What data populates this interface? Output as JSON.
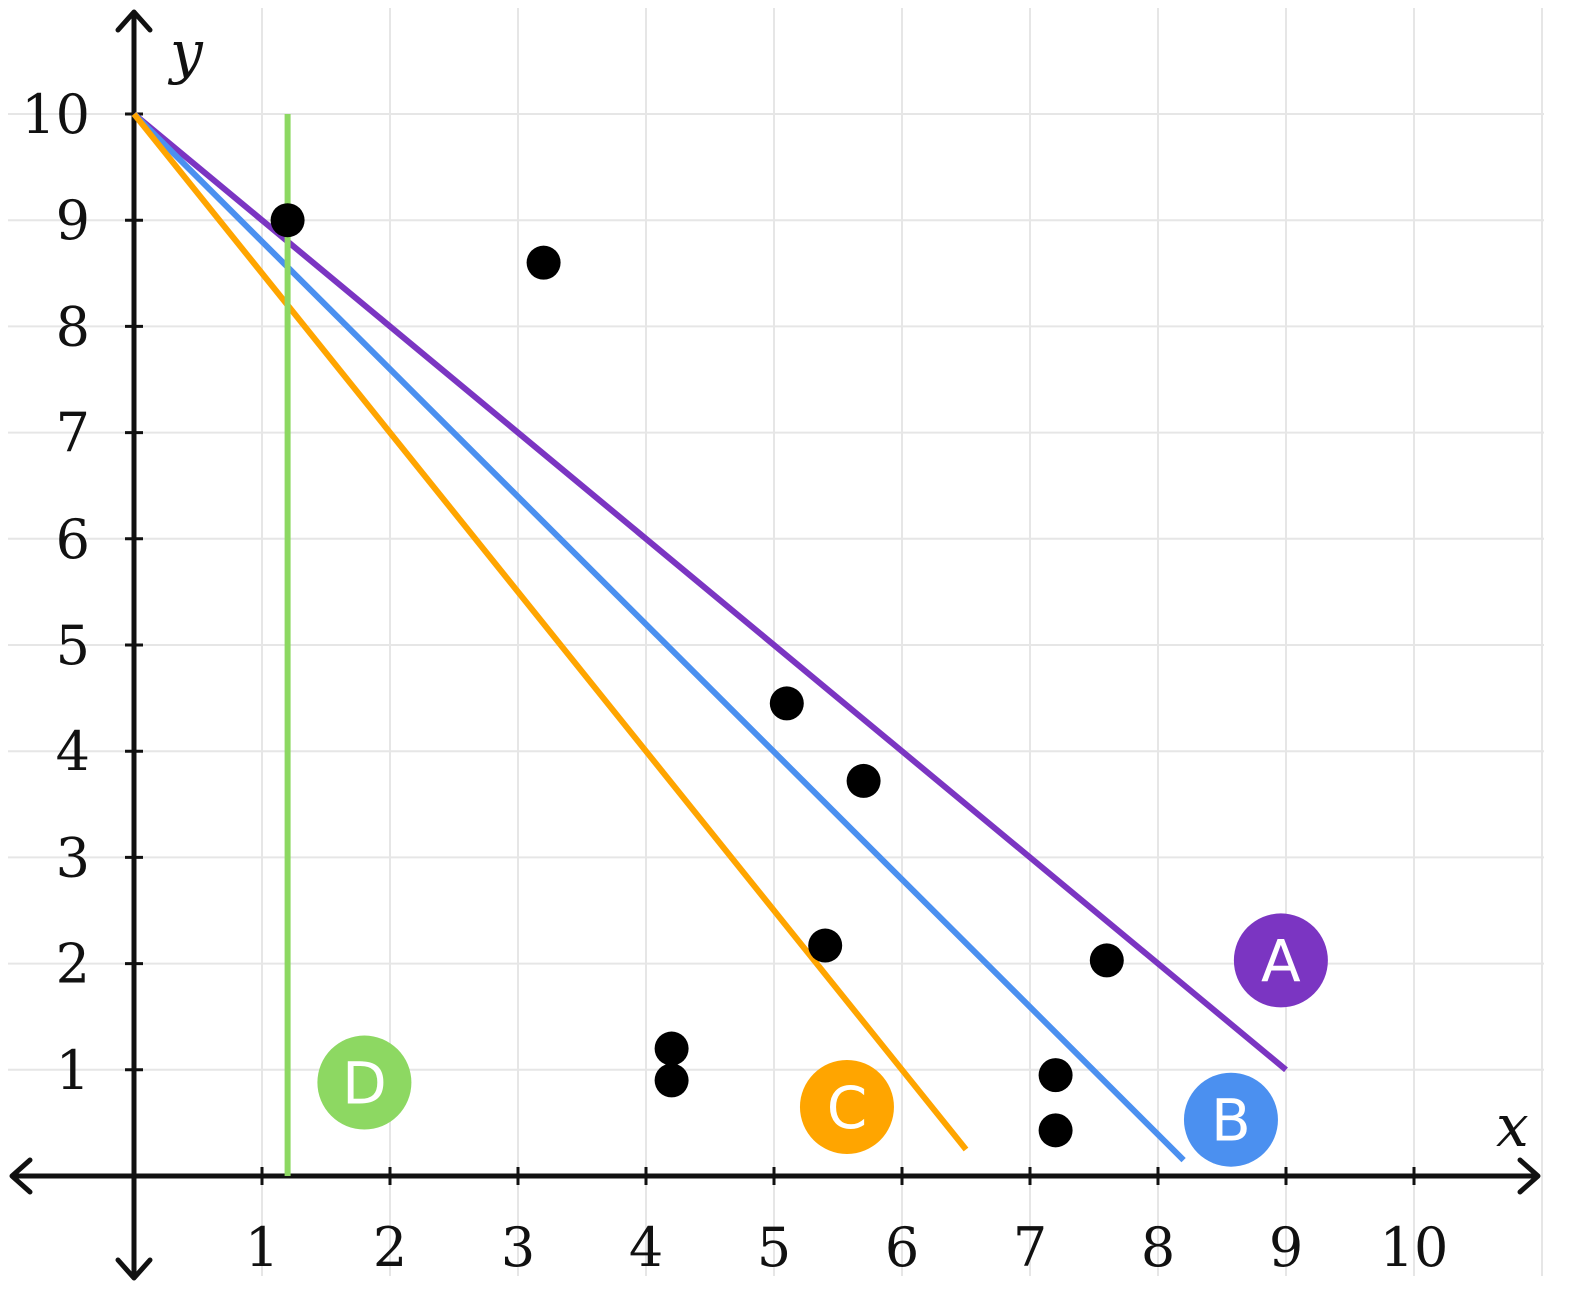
{
  "chart_data": {
    "type": "scatter",
    "title": "",
    "xlabel": "x",
    "ylabel": "y",
    "xlim": [
      -1,
      11
    ],
    "ylim": [
      -1,
      11
    ],
    "grid": true,
    "x_ticks": [
      "1",
      "2",
      "3",
      "4",
      "5",
      "6",
      "7",
      "8",
      "9",
      "10"
    ],
    "y_ticks": [
      "1",
      "2",
      "3",
      "4",
      "5",
      "6",
      "7",
      "8",
      "9",
      "10"
    ],
    "points": [
      {
        "x": 1.2,
        "y": 9.0
      },
      {
        "x": 3.2,
        "y": 8.6
      },
      {
        "x": 5.1,
        "y": 4.45
      },
      {
        "x": 5.7,
        "y": 3.72
      },
      {
        "x": 5.4,
        "y": 2.17
      },
      {
        "x": 7.6,
        "y": 2.03
      },
      {
        "x": 4.2,
        "y": 1.2
      },
      {
        "x": 4.2,
        "y": 0.9
      },
      {
        "x": 7.2,
        "y": 0.95
      },
      {
        "x": 7.2,
        "y": 0.43
      }
    ],
    "lines": [
      {
        "label": "A",
        "color": "#7b35c2",
        "from": [
          0,
          10
        ],
        "to": [
          9,
          1
        ],
        "badge_at": [
          8.96,
          2.03
        ]
      },
      {
        "label": "B",
        "color": "#4b90f0",
        "from": [
          0,
          10
        ],
        "to": [
          8.2,
          0.15
        ],
        "badge_at": [
          8.57,
          0.53
        ]
      },
      {
        "label": "C",
        "color": "#ffa500",
        "from": [
          0,
          10
        ],
        "to": [
          6.5,
          0.25
        ],
        "badge_at": [
          5.57,
          0.65
        ]
      },
      {
        "label": "D",
        "color": "#8dd862",
        "from": [
          1.2,
          10
        ],
        "to": [
          1.2,
          0
        ],
        "badge_at": [
          1.8,
          0.88
        ]
      }
    ]
  }
}
